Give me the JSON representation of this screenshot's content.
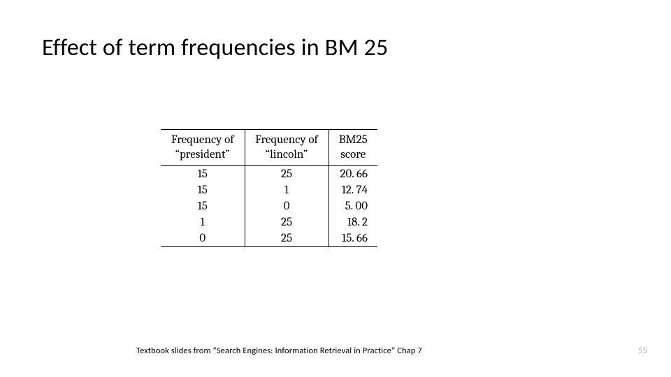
{
  "title": "Effect of term frequencies in BM 25",
  "footer": "Textbook slides from “Search Engines: Information Retrieval in Practice” Chap 7",
  "page_number": "55",
  "table": {
    "header_a_line1": "Frequency of",
    "header_a_line2": "“president”",
    "header_b_line1": "Frequency of",
    "header_b_line2": "“lincoln”",
    "header_c_line1": "BM25",
    "header_c_line2": "score",
    "rows": [
      {
        "a": "15",
        "b": "25",
        "c": "20. 66"
      },
      {
        "a": "15",
        "b": "1",
        "c": "12. 74"
      },
      {
        "a": "15",
        "b": "0",
        "c": "5. 00"
      },
      {
        "a": "1",
        "b": "25",
        "c": "18. 2"
      },
      {
        "a": "0",
        "b": "25",
        "c": "15. 66"
      }
    ],
    "colors": {
      "rule": "#000000",
      "text": "#000000",
      "background": "#ffffff"
    },
    "font_family": "Cambria / Times New Roman serif",
    "header_fontsize_pt": 13,
    "body_fontsize_pt": 13
  },
  "title_style": {
    "font_family": "Calibri",
    "fontsize_pt": 26,
    "color": "#000000"
  },
  "pagenum_color": "#b7b7b7"
}
